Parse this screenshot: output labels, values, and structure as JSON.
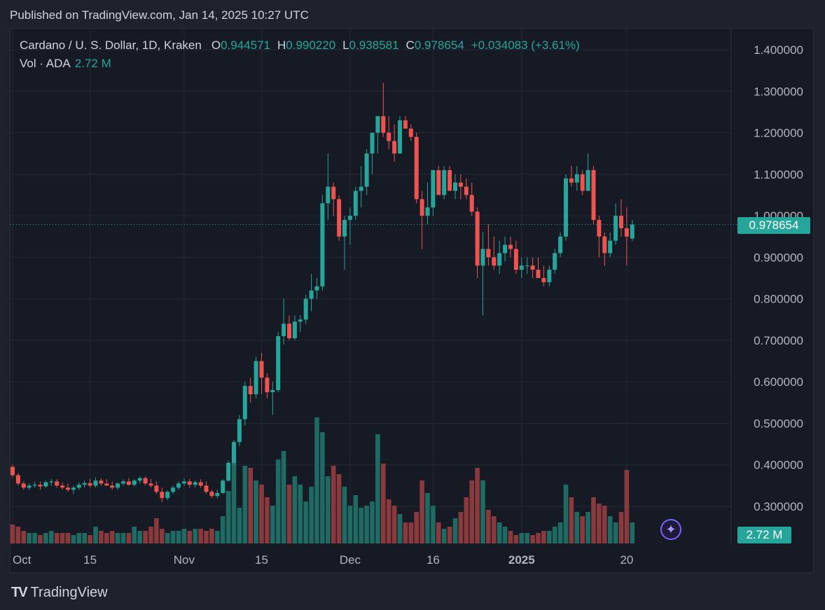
{
  "published": "Published on TradingView.com, Jan 14, 2025 10:27 UTC",
  "legend": {
    "symbol": "Cardano / U. S. Dollar, 1D, Kraken",
    "o_label": "O",
    "o_value": "0.944571",
    "h_label": "H",
    "h_value": "0.990220",
    "l_label": "L",
    "l_value": "0.938581",
    "c_label": "C",
    "c_value": "0.978654",
    "change": "+0.034083 (+3.61%)"
  },
  "volume_legend": {
    "label": "Vol · ADA",
    "value": "2.72 M"
  },
  "last_price_tag": "0.978654",
  "volume_tag": "2.72 M",
  "footer": {
    "logo": "TV",
    "brand": "TradingView"
  },
  "colors": {
    "up": "#26a69a",
    "down": "#ef5350",
    "vol_up": "#1f6b64",
    "vol_down": "#8a3a3c",
    "grid": "#242833",
    "background": "#161a25"
  },
  "chart_data": {
    "type": "candlestick",
    "title": "Cardano / U. S. Dollar, 1D, Kraken",
    "y_axis_ticks": [
      "1.400000",
      "1.300000",
      "1.200000",
      "1.100000",
      "1.000000",
      "0.900000",
      "0.800000",
      "0.700000",
      "0.600000",
      "0.500000",
      "0.400000",
      "0.300000"
    ],
    "ylim": [
      0.22,
      1.44
    ],
    "x_axis_ticks": [
      {
        "label": "Oct",
        "index": 0
      },
      {
        "label": "15",
        "index": 14
      },
      {
        "label": "Nov",
        "index": 31
      },
      {
        "label": "15",
        "index": 45
      },
      {
        "label": "Dec",
        "index": 61
      },
      {
        "label": "16",
        "index": 76
      },
      {
        "label": "2025",
        "index": 92,
        "bold": true
      },
      {
        "label": "20",
        "index": 111
      }
    ],
    "candles": [
      [
        0.395,
        0.4,
        0.37,
        0.375,
        9
      ],
      [
        0.375,
        0.38,
        0.35,
        0.355,
        8
      ],
      [
        0.355,
        0.36,
        0.34,
        0.345,
        6
      ],
      [
        0.345,
        0.355,
        0.34,
        0.35,
        5
      ],
      [
        0.35,
        0.36,
        0.345,
        0.352,
        5
      ],
      [
        0.352,
        0.36,
        0.34,
        0.348,
        4
      ],
      [
        0.348,
        0.362,
        0.345,
        0.358,
        5
      ],
      [
        0.358,
        0.366,
        0.35,
        0.36,
        6
      ],
      [
        0.36,
        0.365,
        0.345,
        0.35,
        5
      ],
      [
        0.35,
        0.358,
        0.34,
        0.345,
        5
      ],
      [
        0.345,
        0.355,
        0.335,
        0.34,
        5
      ],
      [
        0.34,
        0.35,
        0.33,
        0.345,
        4
      ],
      [
        0.345,
        0.358,
        0.34,
        0.352,
        5
      ],
      [
        0.352,
        0.362,
        0.345,
        0.356,
        5
      ],
      [
        0.356,
        0.366,
        0.345,
        0.35,
        4
      ],
      [
        0.35,
        0.37,
        0.345,
        0.362,
        8
      ],
      [
        0.362,
        0.368,
        0.35,
        0.355,
        6
      ],
      [
        0.355,
        0.365,
        0.35,
        0.35,
        5
      ],
      [
        0.35,
        0.36,
        0.34,
        0.345,
        6
      ],
      [
        0.345,
        0.358,
        0.34,
        0.355,
        5
      ],
      [
        0.355,
        0.365,
        0.35,
        0.36,
        5
      ],
      [
        0.36,
        0.368,
        0.35,
        0.352,
        5
      ],
      [
        0.352,
        0.365,
        0.348,
        0.362,
        8
      ],
      [
        0.362,
        0.372,
        0.355,
        0.368,
        6
      ],
      [
        0.368,
        0.372,
        0.35,
        0.355,
        6
      ],
      [
        0.355,
        0.366,
        0.345,
        0.35,
        8
      ],
      [
        0.35,
        0.36,
        0.33,
        0.335,
        12
      ],
      [
        0.335,
        0.345,
        0.31,
        0.32,
        7
      ],
      [
        0.32,
        0.338,
        0.315,
        0.335,
        5
      ],
      [
        0.335,
        0.35,
        0.33,
        0.345,
        6
      ],
      [
        0.345,
        0.36,
        0.34,
        0.355,
        6
      ],
      [
        0.355,
        0.368,
        0.35,
        0.36,
        7
      ],
      [
        0.36,
        0.366,
        0.345,
        0.352,
        6
      ],
      [
        0.352,
        0.362,
        0.345,
        0.358,
        7
      ],
      [
        0.358,
        0.365,
        0.345,
        0.35,
        7
      ],
      [
        0.35,
        0.36,
        0.33,
        0.335,
        6
      ],
      [
        0.335,
        0.34,
        0.32,
        0.325,
        7
      ],
      [
        0.325,
        0.34,
        0.32,
        0.332,
        6
      ],
      [
        0.332,
        0.365,
        0.33,
        0.362,
        13
      ],
      [
        0.362,
        0.41,
        0.36,
        0.405,
        25
      ],
      [
        0.405,
        0.46,
        0.4,
        0.455,
        39
      ],
      [
        0.455,
        0.52,
        0.445,
        0.51,
        17
      ],
      [
        0.51,
        0.6,
        0.495,
        0.59,
        37
      ],
      [
        0.59,
        0.61,
        0.55,
        0.57,
        36
      ],
      [
        0.57,
        0.66,
        0.56,
        0.65,
        30
      ],
      [
        0.65,
        0.67,
        0.57,
        0.61,
        28
      ],
      [
        0.61,
        0.62,
        0.56,
        0.575,
        22
      ],
      [
        0.575,
        0.6,
        0.52,
        0.58,
        18
      ],
      [
        0.58,
        0.72,
        0.575,
        0.71,
        40
      ],
      [
        0.71,
        0.8,
        0.69,
        0.74,
        44
      ],
      [
        0.74,
        0.76,
        0.7,
        0.705,
        28
      ],
      [
        0.705,
        0.76,
        0.7,
        0.745,
        32
      ],
      [
        0.745,
        0.76,
        0.72,
        0.75,
        28
      ],
      [
        0.75,
        0.81,
        0.74,
        0.8,
        20
      ],
      [
        0.8,
        0.86,
        0.77,
        0.82,
        27
      ],
      [
        0.82,
        0.85,
        0.8,
        0.83,
        60
      ],
      [
        0.83,
        1.05,
        0.82,
        1.03,
        53
      ],
      [
        1.03,
        1.15,
        0.99,
        1.07,
        32
      ],
      [
        1.07,
        1.08,
        1.0,
        1.04,
        37
      ],
      [
        1.04,
        1.05,
        0.94,
        0.95,
        33
      ],
      [
        0.95,
        1.0,
        0.87,
        0.99,
        27
      ],
      [
        0.99,
        1.02,
        0.93,
        1.0,
        18
      ],
      [
        1.0,
        1.07,
        0.99,
        1.06,
        23
      ],
      [
        1.06,
        1.12,
        1.02,
        1.07,
        17
      ],
      [
        1.07,
        1.16,
        1.05,
        1.15,
        18
      ],
      [
        1.15,
        1.2,
        1.1,
        1.2,
        20
      ],
      [
        1.2,
        1.24,
        1.15,
        1.24,
        52
      ],
      [
        1.24,
        1.32,
        1.19,
        1.2,
        38
      ],
      [
        1.2,
        1.24,
        1.16,
        1.18,
        21
      ],
      [
        1.18,
        1.22,
        1.13,
        1.15,
        18
      ],
      [
        1.15,
        1.24,
        1.15,
        1.23,
        14
      ],
      [
        1.23,
        1.24,
        1.21,
        1.21,
        10
      ],
      [
        1.21,
        1.22,
        1.18,
        1.19,
        10
      ],
      [
        1.19,
        1.2,
        1.03,
        1.04,
        15
      ],
      [
        1.04,
        1.06,
        0.92,
        1.0,
        30
      ],
      [
        1.0,
        1.08,
        0.98,
        1.02,
        24
      ],
      [
        1.02,
        1.1,
        1.0,
        1.11,
        18
      ],
      [
        1.11,
        1.12,
        1.06,
        1.05,
        10
      ],
      [
        1.05,
        1.12,
        1.04,
        1.11,
        7
      ],
      [
        1.11,
        1.12,
        1.06,
        1.06,
        8
      ],
      [
        1.06,
        1.1,
        1.04,
        1.08,
        12
      ],
      [
        1.08,
        1.1,
        1.04,
        1.07,
        15
      ],
      [
        1.07,
        1.09,
        1.04,
        1.05,
        22
      ],
      [
        1.05,
        1.08,
        1.0,
        1.01,
        30
      ],
      [
        1.01,
        1.02,
        0.85,
        0.88,
        36
      ],
      [
        0.88,
        0.96,
        0.76,
        0.92,
        30
      ],
      [
        0.92,
        0.98,
        0.88,
        0.9,
        16
      ],
      [
        0.9,
        0.95,
        0.87,
        0.88,
        13
      ],
      [
        0.88,
        0.94,
        0.86,
        0.91,
        10
      ],
      [
        0.91,
        0.95,
        0.89,
        0.93,
        8
      ],
      [
        0.93,
        0.95,
        0.9,
        0.92,
        6
      ],
      [
        0.92,
        0.94,
        0.86,
        0.87,
        4
      ],
      [
        0.87,
        0.9,
        0.85,
        0.88,
        5
      ],
      [
        0.88,
        0.9,
        0.86,
        0.88,
        5
      ],
      [
        0.88,
        0.9,
        0.85,
        0.87,
        4
      ],
      [
        0.87,
        0.9,
        0.85,
        0.85,
        5
      ],
      [
        0.85,
        0.88,
        0.83,
        0.84,
        6
      ],
      [
        0.84,
        0.88,
        0.83,
        0.87,
        6
      ],
      [
        0.87,
        0.92,
        0.86,
        0.91,
        8
      ],
      [
        0.91,
        0.96,
        0.9,
        0.95,
        10
      ],
      [
        0.95,
        1.1,
        0.94,
        1.09,
        28
      ],
      [
        1.09,
        1.12,
        1.07,
        1.08,
        22
      ],
      [
        1.08,
        1.12,
        1.06,
        1.1,
        15
      ],
      [
        1.1,
        1.11,
        1.05,
        1.06,
        13
      ],
      [
        1.06,
        1.15,
        1.06,
        1.11,
        15
      ],
      [
        1.11,
        1.12,
        0.98,
        0.99,
        22
      ],
      [
        0.99,
        1.0,
        0.9,
        0.95,
        19
      ],
      [
        0.95,
        0.96,
        0.88,
        0.91,
        18
      ],
      [
        0.91,
        0.96,
        0.9,
        0.94,
        13
      ],
      [
        0.94,
        1.03,
        0.93,
        1.0,
        10
      ],
      [
        1.0,
        1.04,
        0.95,
        0.97,
        15
      ],
      [
        0.97,
        1.02,
        0.88,
        0.95,
        35
      ],
      [
        0.945,
        0.99,
        0.939,
        0.979,
        10
      ]
    ]
  }
}
